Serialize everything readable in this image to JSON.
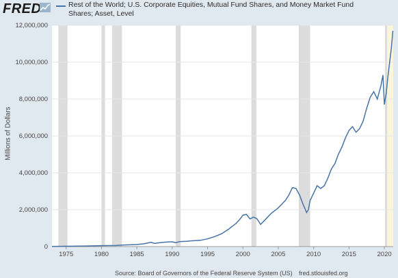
{
  "header": {
    "logo_text": "FRED",
    "legend_label": "Rest of the World; U.S. Corporate Equities, Mutual Fund Shares, and Money Market Fund Shares; Asset, Level",
    "series_color": "#4572a7"
  },
  "footer": {
    "source": "Source: Board of Governors of the Federal Reserve System (US)",
    "url": "fred.stlouisfed.org"
  },
  "chart_data": {
    "type": "line",
    "ylabel": "Millions of Dollars",
    "xlim": [
      1973.0,
      2021.25
    ],
    "ylim": [
      0,
      12000000
    ],
    "x_ticks": [
      1975,
      1980,
      1985,
      1990,
      1995,
      2000,
      2005,
      2010,
      2015,
      2020
    ],
    "y_ticks": [
      0,
      2000000,
      4000000,
      6000000,
      8000000,
      10000000,
      12000000
    ],
    "y_tick_labels": [
      "0",
      "2,000,000",
      "4,000,000",
      "6,000,000",
      "8,000,000",
      "10,000,000",
      "12,000,000"
    ],
    "recessions": [
      [
        1973.9,
        1975.2
      ],
      [
        1980.0,
        1980.5
      ],
      [
        1981.5,
        1982.9
      ],
      [
        1990.5,
        1991.2
      ],
      [
        2001.2,
        2001.9
      ],
      [
        2007.9,
        2009.5
      ],
      [
        2020.1,
        2020.4
      ]
    ],
    "shaded_tail": [
      2020.4,
      2021.25
    ],
    "series": [
      {
        "x": [
          1973.0,
          1975.0,
          1978.0,
          1980.0,
          1982.0,
          1983.0,
          1985.0,
          1986.0,
          1987.0,
          1987.5,
          1988.0,
          1989.0,
          1990.0,
          1990.5,
          1991.0,
          1992.0,
          1993.0,
          1994.0,
          1995.0,
          1996.0,
          1997.0,
          1998.0,
          1998.5,
          1999.0,
          1999.5,
          2000.0,
          2000.5,
          2001.0,
          2001.5,
          2002.0,
          2002.5,
          2003.0,
          2003.5,
          2004.0,
          2005.0,
          2005.5,
          2006.0,
          2006.5,
          2007.0,
          2007.5,
          2008.0,
          2008.5,
          2009.0,
          2009.25,
          2009.5,
          2010.0,
          2010.5,
          2011.0,
          2011.5,
          2012.0,
          2012.5,
          2013.0,
          2013.5,
          2014.0,
          2014.5,
          2015.0,
          2015.5,
          2016.0,
          2016.5,
          2017.0,
          2017.5,
          2018.0,
          2018.5,
          2019.0,
          2019.5,
          2019.8,
          2020.0,
          2020.25,
          2020.5,
          2020.75,
          2021.0,
          2021.2
        ],
        "y": [
          10000,
          20000,
          35000,
          50000,
          60000,
          80000,
          110000,
          150000,
          230000,
          170000,
          200000,
          240000,
          260000,
          210000,
          270000,
          290000,
          320000,
          340000,
          420000,
          540000,
          700000,
          950000,
          1100000,
          1250000,
          1450000,
          1700000,
          1750000,
          1500000,
          1600000,
          1500000,
          1200000,
          1400000,
          1600000,
          1800000,
          2100000,
          2300000,
          2500000,
          2800000,
          3200000,
          3150000,
          2800000,
          2300000,
          1850000,
          2000000,
          2500000,
          2900000,
          3300000,
          3150000,
          3300000,
          3700000,
          4200000,
          4500000,
          5000000,
          5400000,
          5900000,
          6300000,
          6500000,
          6200000,
          6400000,
          6800000,
          7500000,
          8100000,
          8400000,
          8000000,
          8700000,
          9300000,
          7700000,
          8300000,
          9200000,
          10000000,
          10800000,
          11700000
        ]
      }
    ]
  }
}
